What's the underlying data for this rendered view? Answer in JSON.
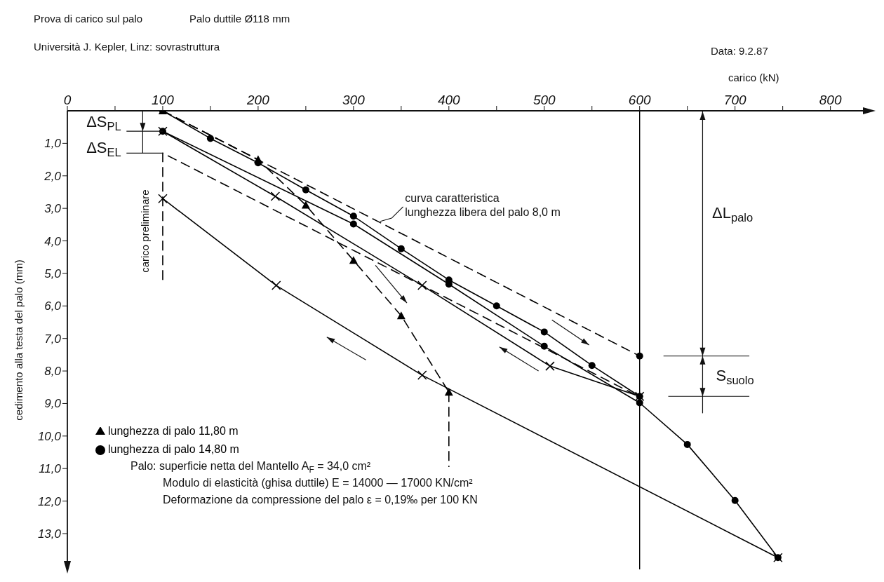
{
  "chart_data": {
    "type": "line",
    "title": "Prova di carico sul palo",
    "subtitle": "Università J. Kepler, Linz: sovrastruttura",
    "xlabel": "carico (kN)",
    "ylabel": "cedimento alla testa del palo (mm)",
    "xlim": [
      0,
      840
    ],
    "xticks": [
      0,
      {
        "value": 50,
        "label": null
      },
      100,
      {
        "value": 150,
        "label": null
      },
      200,
      {
        "value": 250,
        "label": null
      },
      300,
      {
        "value": 350,
        "label": null
      },
      400,
      {
        "value": 450,
        "label": null
      },
      500,
      {
        "value": 550,
        "label": null
      },
      600,
      {
        "value": 650,
        "label": null
      },
      700,
      {
        "value": 750,
        "label": null
      },
      800
    ],
    "ylim": [
      14.1,
      0
    ],
    "yticks": [
      {
        "value": 1,
        "label": "1,0"
      },
      {
        "value": 2,
        "label": "2,0"
      },
      {
        "value": 3,
        "label": "3,0"
      },
      {
        "value": 4,
        "label": "4,0"
      },
      {
        "value": 5,
        "label": "5,0"
      },
      {
        "value": 6,
        "label": "6,0"
      },
      {
        "value": 7,
        "label": "7,0"
      },
      {
        "value": 8,
        "label": "8,0"
      },
      {
        "value": 9,
        "label": "9,0"
      },
      {
        "value": 10,
        "label": "10,0"
      },
      {
        "value": 11,
        "label": "11,0"
      },
      {
        "value": 12,
        "label": "12,0"
      },
      {
        "value": 13,
        "label": "13,0"
      }
    ],
    "legend": "bottom left",
    "ref_lines": [
      {
        "axis": "x",
        "value": 600,
        "color": "#000000"
      }
    ],
    "marker": "none",
    "line_style": "solid",
    "series": [
      {
        "name": "lunghezza di palo 14,80 m",
        "color": "#000000",
        "marker": "circle",
        "x": [
          100,
          150,
          200,
          250,
          300,
          350,
          400,
          450,
          500,
          550,
          600
        ],
        "values": [
          0,
          0.85,
          1.6,
          2.43,
          3.24,
          4.24,
          5.2,
          6.0,
          6.8,
          7.83,
          8.78
        ]
      },
      {
        "name": "lunghezza di palo 11,80 m",
        "color": "#000000",
        "marker": "triangle",
        "line_style": "dashed",
        "x": [
          100,
          200,
          250,
          300,
          350,
          400
        ],
        "values": [
          0,
          1.5,
          2.9,
          4.6,
          6.3,
          8.65
        ]
      },
      {
        "color": "#000000",
        "line_style": "dashed",
        "x": [
          400,
          400
        ],
        "values": [
          8.65,
          10.95
        ]
      },
      {
        "color": "#000000",
        "marker": "circle",
        "x": [
          100,
          300,
          400,
          500,
          600,
          650,
          700,
          745
        ],
        "values": [
          0.63,
          3.48,
          5.33,
          7.24,
          8.98,
          10.26,
          11.98,
          13.74
        ]
      },
      {
        "color": "#000000",
        "marker": "cross",
        "x": [
          100,
          218,
          372,
          506,
          600
        ],
        "values": [
          0.63,
          2.63,
          5.37,
          7.85,
          8.78
        ]
      },
      {
        "color": "#000000",
        "line_style": "dashed",
        "x": [
          100,
          100,
          372,
          600
        ],
        "values": [
          5.2,
          1.3,
          5.37,
          8.8
        ]
      },
      {
        "color": "#000000",
        "marker": "cross",
        "x": [
          745,
          372,
          219,
          100
        ],
        "values": [
          13.74,
          8.13,
          5.37,
          2.7
        ]
      },
      {
        "color": "#000000",
        "line_style": "dashed",
        "x": [
          100,
          600
        ],
        "values": [
          0,
          7.54
        ]
      },
      {
        "color": "#000000",
        "type": "scatter",
        "marker": "circle",
        "x": [
          600
        ],
        "values": [
          7.54
        ]
      }
    ],
    "annotations": [
      "Palo duttile Ø118 mm",
      "Data: 9.2.87",
      "carico preliminare",
      "curva caratteristica\nlunghezza libera del palo 8,0 m",
      {
        "text": "ΔS$_{PL}$",
        "x": 100,
        "y": 0.63
      },
      {
        "text": "ΔS$_{EL}$",
        "x": 100,
        "y": 1.3
      },
      "ΔL$_{palo}$",
      "S$_{suolo}$",
      "Palo: superficie netta del Mantello A$_{F}$ = 34,0 cm²",
      "Modulo di elasticità (ghisa duttile) E = 14000 — 17000 KN/cm²",
      "Deformazione da compressione del palo ε = 0,19‰ per 100 KN"
    ]
  }
}
